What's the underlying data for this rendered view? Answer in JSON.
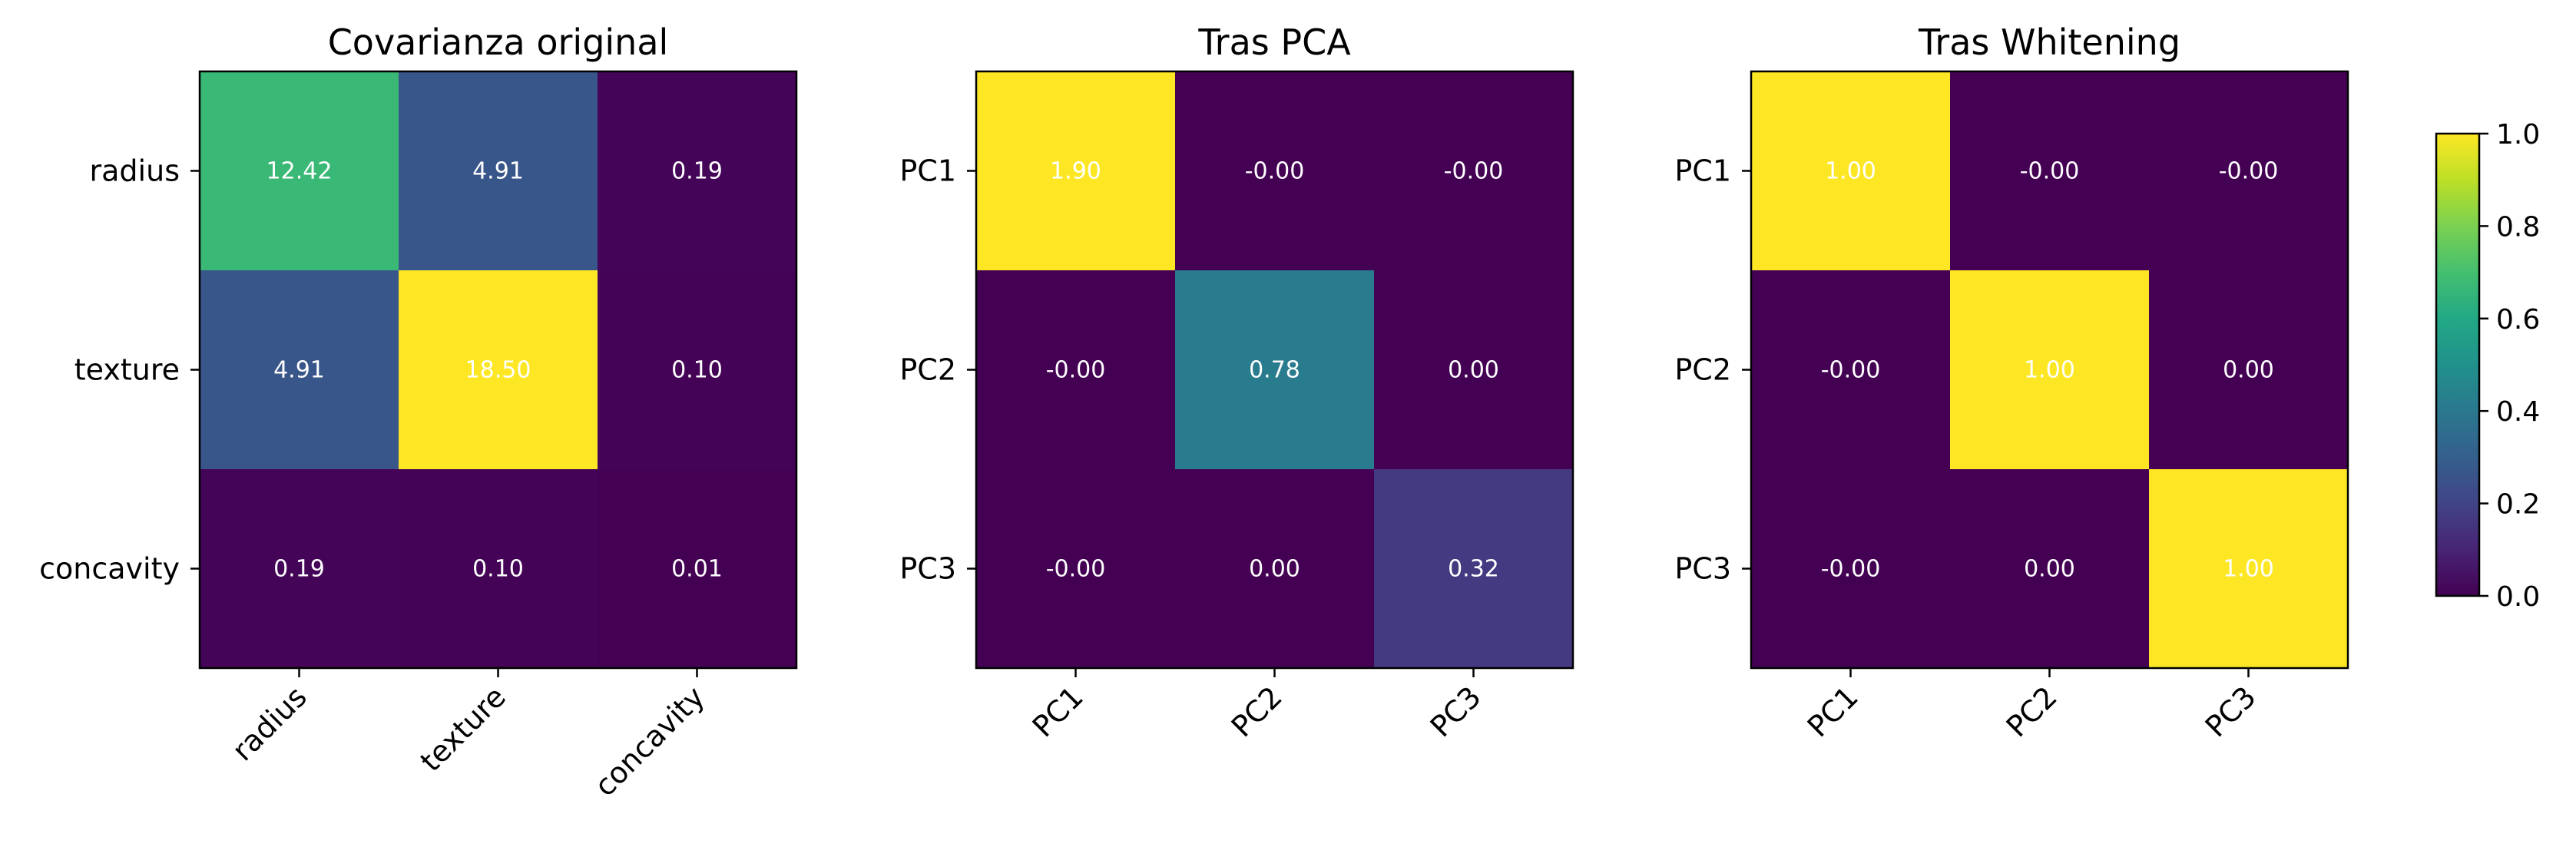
{
  "chart_data": [
    {
      "type": "heatmap",
      "title": "Covarianza original",
      "xlabel": "",
      "ylabel": "",
      "x_categories": [
        "radius",
        "texture",
        "concavity"
      ],
      "y_categories": [
        "radius",
        "texture",
        "concavity"
      ],
      "values": [
        [
          12.42,
          4.91,
          0.19
        ],
        [
          4.91,
          18.5,
          0.1
        ],
        [
          0.19,
          0.1,
          0.01
        ]
      ],
      "labels": [
        [
          "12.42",
          "4.91",
          "0.19"
        ],
        [
          "4.91",
          "18.50",
          "0.10"
        ],
        [
          "0.19",
          "0.10",
          "0.01"
        ]
      ],
      "colormap": "viridis",
      "grid": false
    },
    {
      "type": "heatmap",
      "title": "Tras PCA",
      "xlabel": "",
      "ylabel": "",
      "x_categories": [
        "PC1",
        "PC2",
        "PC3"
      ],
      "y_categories": [
        "PC1",
        "PC2",
        "PC3"
      ],
      "values": [
        [
          1.9,
          0.0,
          0.0
        ],
        [
          0.0,
          0.78,
          0.0
        ],
        [
          0.0,
          0.0,
          0.32
        ]
      ],
      "labels": [
        [
          "1.90",
          "-0.00",
          "-0.00"
        ],
        [
          "-0.00",
          "0.78",
          "0.00"
        ],
        [
          "-0.00",
          "0.00",
          "0.32"
        ]
      ],
      "colormap": "viridis",
      "grid": false
    },
    {
      "type": "heatmap",
      "title": "Tras Whitening",
      "xlabel": "",
      "ylabel": "",
      "x_categories": [
        "PC1",
        "PC2",
        "PC3"
      ],
      "y_categories": [
        "PC1",
        "PC2",
        "PC3"
      ],
      "values": [
        [
          1.0,
          0.0,
          0.0
        ],
        [
          0.0,
          1.0,
          0.0
        ],
        [
          0.0,
          0.0,
          1.0
        ]
      ],
      "labels": [
        [
          "1.00",
          "-0.00",
          "-0.00"
        ],
        [
          "-0.00",
          "1.00",
          "0.00"
        ],
        [
          "-0.00",
          "0.00",
          "1.00"
        ]
      ],
      "colormap": "viridis",
      "grid": false,
      "colorbar": {
        "range": [
          0.0,
          1.0
        ],
        "ticks": [
          "0.0",
          "0.2",
          "0.4",
          "0.6",
          "0.8",
          "1.0"
        ],
        "placement": "right"
      }
    }
  ],
  "colors": {
    "viridis_low": "#440154",
    "viridis_mid": "#21918c",
    "viridis_high": "#fde725"
  }
}
